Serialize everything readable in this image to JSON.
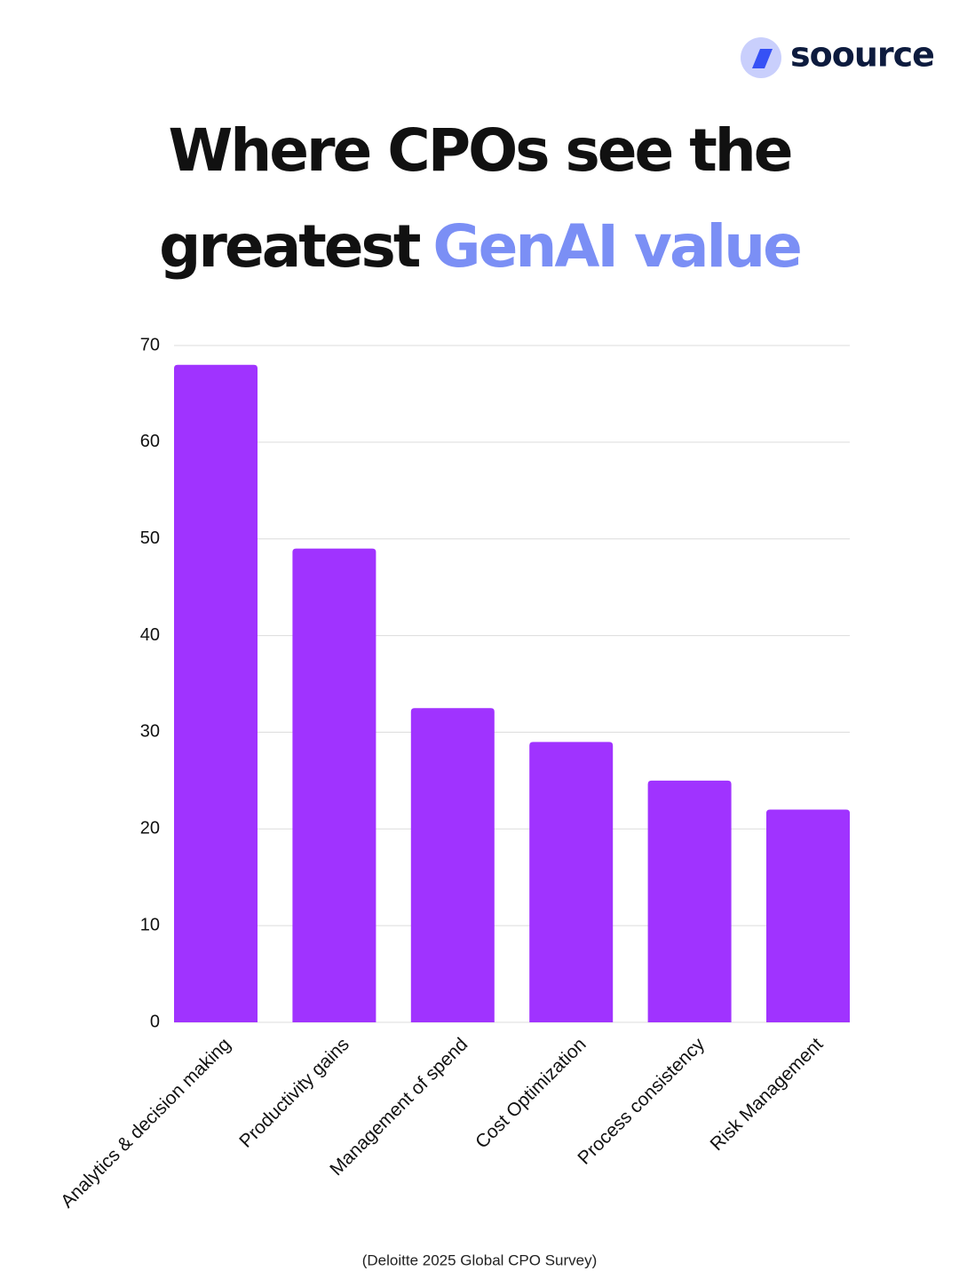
{
  "brand": "soource",
  "chart_data": {
    "type": "bar",
    "title_lines": [
      "Where CPOs see the",
      "greatest"
    ],
    "title_highlight": "GenAI value",
    "title_highlight_color": "#7b8ff5",
    "categories": [
      "Analytics & decision making",
      "Productivity gains",
      "Management of spend",
      "Cost Optimization",
      "Process consistency",
      "Risk Management"
    ],
    "values": [
      68,
      49,
      32.5,
      29,
      25,
      22
    ],
    "color": "#a033ff",
    "ylim": [
      0,
      70
    ],
    "yticks": [
      0,
      10,
      20,
      30,
      40,
      50,
      60,
      70
    ],
    "grid": true,
    "source": "(Deloitte 2025 Global CPO Survey)"
  }
}
